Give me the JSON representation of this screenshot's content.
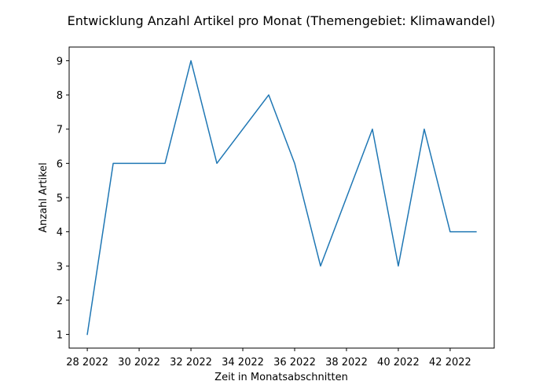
{
  "chart_data": {
    "type": "line",
    "title": "Entwicklung Anzahl Artikel pro Monat (Themengebiet: Klimawandel)",
    "xlabel": "Zeit in Monatsabschnitten",
    "ylabel": "Anzahl Artikel",
    "x_ticks": [
      "28 2022",
      "30 2022",
      "32 2022",
      "34 2022",
      "36 2022",
      "38 2022",
      "40 2022",
      "42 2022"
    ],
    "y_ticks": [
      "1",
      "2",
      "3",
      "4",
      "5",
      "6",
      "7",
      "8",
      "9"
    ],
    "x": [
      "28 2022",
      "29 2022",
      "30 2022",
      "31 2022",
      "32 2022",
      "33 2022",
      "34 2022",
      "35 2022",
      "36 2022",
      "37 2022",
      "38 2022",
      "39 2022",
      "40 2022",
      "41 2022",
      "42 2022",
      "43 2022"
    ],
    "series": [
      {
        "values": [
          1,
          6,
          6,
          6,
          9,
          6,
          7,
          8,
          6,
          3,
          5,
          7,
          3,
          7,
          4,
          4
        ],
        "color": "#1f77b4"
      }
    ],
    "xlim": [
      27.3,
      43.7
    ],
    "ylim": [
      0.6,
      9.4
    ],
    "grid": false,
    "legend": "none"
  }
}
